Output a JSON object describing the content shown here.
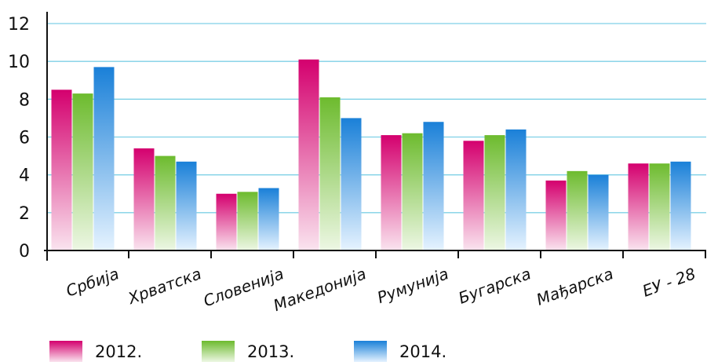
{
  "chart_data": {
    "type": "bar",
    "categories": [
      "Србија",
      "Хрватска",
      "Словенија",
      "Македонија",
      "Румунија",
      "Бугарска",
      "Мађарска",
      "ЕУ - 28"
    ],
    "series": [
      {
        "name": "2012.",
        "values": [
          8.5,
          5.4,
          3.0,
          10.1,
          6.1,
          5.8,
          3.7,
          4.6
        ]
      },
      {
        "name": "2013.",
        "values": [
          8.3,
          5.0,
          3.1,
          8.1,
          6.2,
          6.1,
          4.2,
          4.6
        ]
      },
      {
        "name": "2014.",
        "values": [
          9.7,
          4.7,
          3.3,
          7.0,
          6.8,
          6.4,
          4.0,
          4.7
        ]
      }
    ],
    "ylim": [
      0,
      12
    ],
    "yticks": [
      0,
      2,
      4,
      6,
      8,
      10,
      12
    ],
    "ytick_labels": [
      "0",
      "2",
      "4",
      "6",
      "8",
      "10",
      "12"
    ],
    "grid": true,
    "legend_position": "bottom-left"
  },
  "colors": {
    "series_top": [
      "#d4006e",
      "#6dbb2e",
      "#1a80d8"
    ],
    "series_bottom": [
      "#fae4ef",
      "#edf7e4",
      "#e6f3ff"
    ],
    "grid": "#7fd0e6",
    "axis": "#111111"
  }
}
